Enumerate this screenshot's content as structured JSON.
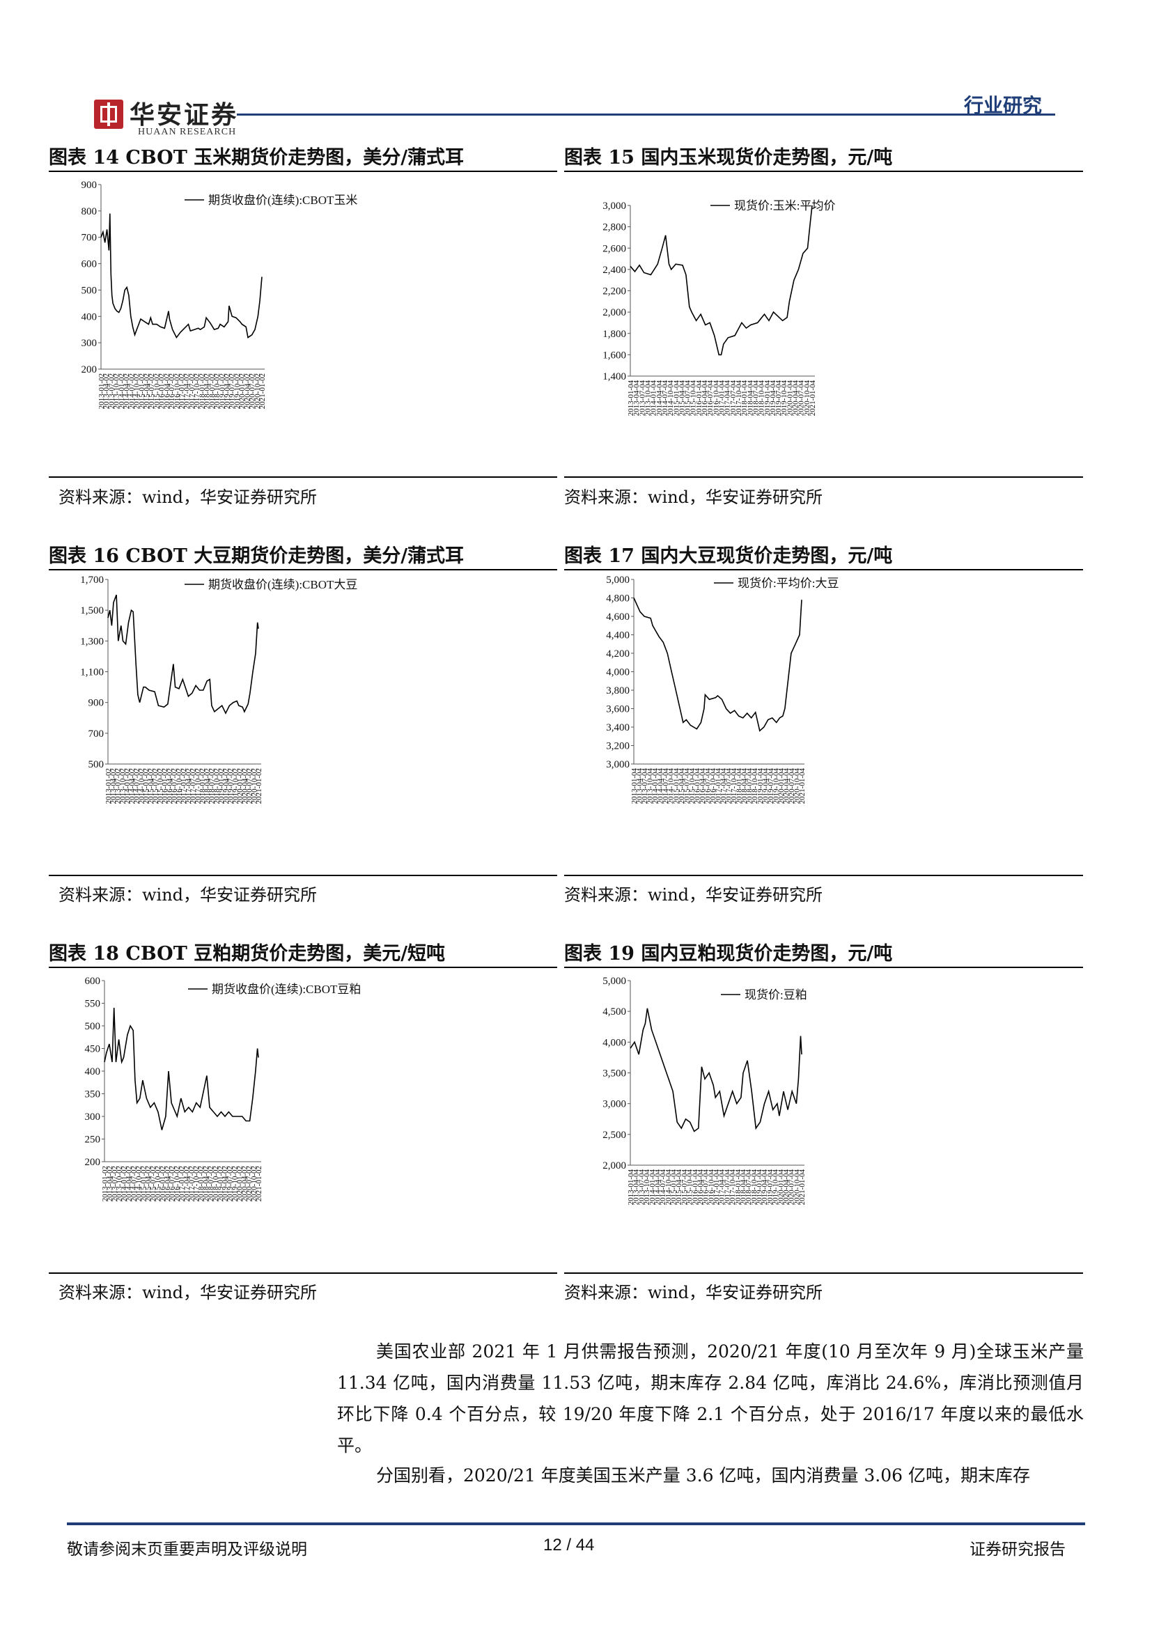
{
  "header": {
    "logo_cn": "华安证券",
    "logo_en": "HUAAN RESEARCH",
    "section_tag": "行业研究"
  },
  "figures": [
    {
      "caption": "图表 14 CBOT 玉米期货价走势图，美分/蒲式耳",
      "source": "资料来源：wind，华安证券研究所"
    },
    {
      "caption": "图表 15  国内玉米现货价走势图，元/吨",
      "source": "资料来源：wind，华安证券研究所"
    },
    {
      "caption": "图表 16 CBOT 大豆期货价走势图，美分/蒲式耳",
      "source": "资料来源：wind，华安证券研究所"
    },
    {
      "caption": "图表 17  国内大豆现货价走势图，元/吨",
      "source": "资料来源：wind，华安证券研究所"
    },
    {
      "caption": "图表 18 CBOT 豆粕期货价走势图，美元/短吨",
      "source": "资料来源：wind，华安证券研究所"
    },
    {
      "caption": "图表 19  国内豆粕现货价走势图，元/吨",
      "source": "资料来源：wind，华安证券研究所"
    }
  ],
  "chart_data": [
    {
      "type": "line",
      "legend": "期货收盘价(连续):CBOT玉米",
      "ylim": [
        200,
        900
      ],
      "yticks": [
        "200",
        "300",
        "400",
        "500",
        "600",
        "700",
        "800",
        "900"
      ],
      "xticks": [
        "2013-01-02",
        "2013-04-02",
        "2013-07-02",
        "2013-10-02",
        "2014-01-02",
        "2014-04-02",
        "2014-07-02",
        "2014-10-02",
        "2015-01-02",
        "2015-04-02",
        "2015-07-02",
        "2015-10-02",
        "2016-01-02",
        "2016-04-02",
        "2016-07-02",
        "2016-10-02",
        "2017-01-02",
        "2017-04-02",
        "2017-07-02",
        "2017-10-02",
        "2018-01-02",
        "2018-04-02",
        "2018-07-02",
        "2018-10-02",
        "2019-01-02",
        "2019-04-02",
        "2019-07-02",
        "2019-10-02",
        "2020-01-02",
        "2020-04-02",
        "2020-07-02",
        "2020-10-02",
        "2021-01-02"
      ],
      "x": [
        2013.0,
        2013.1,
        2013.2,
        2013.3,
        2013.4,
        2013.45,
        2013.5,
        2013.55,
        2013.6,
        2013.7,
        2013.8,
        2013.9,
        2014.0,
        2014.1,
        2014.2,
        2014.3,
        2014.4,
        2014.5,
        2014.6,
        2014.7,
        2014.8,
        2014.9,
        2015.0,
        2015.2,
        2015.4,
        2015.5,
        2015.6,
        2015.8,
        2016.0,
        2016.2,
        2016.4,
        2016.45,
        2016.6,
        2016.8,
        2017.0,
        2017.2,
        2017.4,
        2017.5,
        2017.7,
        2017.9,
        2018.0,
        2018.2,
        2018.3,
        2018.5,
        2018.7,
        2018.9,
        2019.0,
        2019.2,
        2019.4,
        2019.45,
        2019.6,
        2019.8,
        2020.0,
        2020.1,
        2020.3,
        2020.4,
        2020.6,
        2020.75,
        2020.9,
        2021.0,
        2021.1
      ],
      "y": [
        700,
        720,
        680,
        730,
        650,
        790,
        560,
        480,
        450,
        430,
        420,
        415,
        430,
        460,
        500,
        510,
        480,
        400,
        360,
        330,
        350,
        370,
        390,
        380,
        370,
        395,
        370,
        370,
        360,
        355,
        420,
        390,
        350,
        320,
        340,
        355,
        370,
        345,
        350,
        355,
        350,
        360,
        395,
        375,
        350,
        355,
        370,
        360,
        380,
        440,
        400,
        395,
        380,
        370,
        360,
        320,
        330,
        350,
        400,
        460,
        550
      ]
    },
    {
      "type": "line",
      "legend": "现货价:玉米:平均价",
      "ylim": [
        1400,
        3000
      ],
      "yticks": [
        "1,400",
        "1,600",
        "1,800",
        "2,000",
        "2,200",
        "2,400",
        "2,600",
        "2,800",
        "3,000"
      ],
      "xticks": [
        "2013-01-04",
        "2013-04-04",
        "2013-07-04",
        "2013-10-04",
        "2014-01-04",
        "2014-04-04",
        "2014-07-04",
        "2014-10-04",
        "2015-01-04",
        "2015-04-04",
        "2015-07-04",
        "2015-10-04",
        "2016-01-04",
        "2016-04-04",
        "2016-07-04",
        "2016-10-04",
        "2017-01-04",
        "2017-04-04",
        "2017-07-04",
        "2017-10-04",
        "2018-01-04",
        "2018-04-04",
        "2018-07-04",
        "2018-10-04",
        "2019-01-04",
        "2019-04-04",
        "2019-07-04",
        "2019-10-04",
        "2020-01-04",
        "2020-04-04",
        "2020-07-04",
        "2020-10-04",
        "2021-01-04"
      ],
      "x": [
        2013.0,
        2013.2,
        2013.4,
        2013.6,
        2013.9,
        2014.2,
        2014.4,
        2014.55,
        2014.7,
        2014.8,
        2015.0,
        2015.3,
        2015.45,
        2015.6,
        2015.7,
        2015.9,
        2016.1,
        2016.3,
        2016.5,
        2016.7,
        2016.9,
        2017.0,
        2017.1,
        2017.3,
        2017.6,
        2017.9,
        2018.1,
        2018.3,
        2018.6,
        2018.9,
        2019.1,
        2019.3,
        2019.5,
        2019.7,
        2019.9,
        2020.0,
        2020.2,
        2020.4,
        2020.6,
        2020.8,
        2020.9,
        2021.0
      ],
      "y": [
        2430,
        2380,
        2440,
        2370,
        2350,
        2450,
        2600,
        2720,
        2450,
        2400,
        2450,
        2440,
        2350,
        2050,
        2000,
        1920,
        1980,
        1880,
        1900,
        1780,
        1600,
        1600,
        1700,
        1760,
        1780,
        1900,
        1850,
        1880,
        1900,
        1980,
        1920,
        2000,
        1960,
        1920,
        1950,
        2100,
        2300,
        2400,
        2550,
        2600,
        2800,
        3000
      ]
    },
    {
      "type": "line",
      "legend": "期货收盘价(连续):CBOT大豆",
      "ylim": [
        500,
        1700
      ],
      "yticks": [
        "500",
        "700",
        "900",
        "1,100",
        "1,300",
        "1,500",
        "1,700"
      ],
      "xticks": [
        "2013-01-02",
        "2013-04-02",
        "2013-07-02",
        "2013-10-02",
        "2014-01-02",
        "2014-04-02",
        "2014-07-02",
        "2014-10-02",
        "2015-01-02",
        "2015-04-02",
        "2015-07-02",
        "2015-10-02",
        "2016-01-02",
        "2016-04-02",
        "2016-07-02",
        "2016-10-02",
        "2017-01-02",
        "2017-04-02",
        "2017-07-02",
        "2017-10-02",
        "2018-01-02",
        "2018-04-02",
        "2018-07-02",
        "2018-10-02",
        "2019-01-02",
        "2019-04-02",
        "2019-07-02",
        "2019-10-02",
        "2020-01-02",
        "2020-04-02",
        "2020-07-02",
        "2020-10-02",
        "2021-01-02"
      ],
      "x": [
        2013.0,
        2013.1,
        2013.2,
        2013.3,
        2013.45,
        2013.55,
        2013.7,
        2013.8,
        2013.95,
        2014.1,
        2014.25,
        2014.35,
        2014.5,
        2014.6,
        2014.7,
        2014.9,
        2015.0,
        2015.2,
        2015.5,
        2015.7,
        2016.0,
        2016.2,
        2016.5,
        2016.6,
        2016.8,
        2017.0,
        2017.3,
        2017.5,
        2017.7,
        2017.9,
        2018.1,
        2018.3,
        2018.45,
        2018.55,
        2018.7,
        2018.9,
        2019.1,
        2019.3,
        2019.5,
        2019.7,
        2019.9,
        2020.0,
        2020.2,
        2020.3,
        2020.5,
        2020.6,
        2020.75,
        2020.9,
        2021.0,
        2021.05
      ],
      "y": [
        1450,
        1500,
        1400,
        1550,
        1600,
        1300,
        1400,
        1300,
        1280,
        1420,
        1500,
        1490,
        1150,
        950,
        900,
        1000,
        1000,
        980,
        970,
        880,
        870,
        890,
        1150,
        1000,
        990,
        1050,
        940,
        960,
        1010,
        980,
        980,
        1040,
        1050,
        880,
        840,
        860,
        880,
        830,
        880,
        900,
        910,
        880,
        870,
        840,
        890,
        960,
        1100,
        1220,
        1420,
        1380
      ]
    },
    {
      "type": "line",
      "legend": "现货价:平均价:大豆",
      "ylim": [
        3000,
        5000
      ],
      "yticks": [
        "3,000",
        "3,200",
        "3,400",
        "3,600",
        "3,800",
        "4,000",
        "4,200",
        "4,400",
        "4,600",
        "4,800",
        "5,000"
      ],
      "xticks": [
        "2013-01-04",
        "2013-04-04",
        "2013-07-04",
        "2013-10-04",
        "2014-01-04",
        "2014-04-04",
        "2014-07-04",
        "2014-10-04",
        "2015-01-04",
        "2015-04-04",
        "2015-07-04",
        "2015-10-04",
        "2016-01-04",
        "2016-04-04",
        "2016-07-04",
        "2016-10-04",
        "2017-01-04",
        "2017-04-04",
        "2017-07-04",
        "2017-10-04",
        "2018-01-04",
        "2018-04-04",
        "2018-07-04",
        "2018-10-04",
        "2019-01-04",
        "2019-04-04",
        "2019-07-04",
        "2019-10-04",
        "2020-01-04",
        "2020-04-04",
        "2020-07-04",
        "2020-10-04",
        "2021-01-04"
      ],
      "x": [
        2013.0,
        2013.2,
        2013.3,
        2013.5,
        2013.8,
        2013.9,
        2014.2,
        2014.4,
        2014.6,
        2014.8,
        2015.0,
        2015.2,
        2015.35,
        2015.5,
        2015.7,
        2016.0,
        2016.2,
        2016.35,
        2016.4,
        2016.6,
        2016.9,
        2017.0,
        2017.2,
        2017.4,
        2017.6,
        2017.8,
        2018.0,
        2018.2,
        2018.4,
        2018.6,
        2018.8,
        2019.0,
        2019.2,
        2019.4,
        2019.6,
        2019.8,
        2019.95,
        2020.1,
        2020.2,
        2020.4,
        2020.5,
        2020.7,
        2020.9,
        2021.0
      ],
      "y": [
        4800,
        4700,
        4650,
        4600,
        4580,
        4500,
        4380,
        4320,
        4200,
        4000,
        3800,
        3600,
        3450,
        3480,
        3420,
        3380,
        3450,
        3600,
        3750,
        3700,
        3720,
        3740,
        3700,
        3600,
        3550,
        3580,
        3520,
        3500,
        3550,
        3500,
        3560,
        3360,
        3400,
        3480,
        3500,
        3450,
        3500,
        3520,
        3600,
        4000,
        4200,
        4300,
        4400,
        4780
      ]
    },
    {
      "type": "line",
      "legend": "期货收盘价(连续):CBOT豆粕",
      "ylim": [
        200,
        600
      ],
      "yticks": [
        "200",
        "250",
        "300",
        "350",
        "400",
        "450",
        "500",
        "550",
        "600"
      ],
      "xticks": [
        "2013-01-02",
        "2013-04-02",
        "2013-07-02",
        "2013-10-02",
        "2014-01-02",
        "2014-04-02",
        "2014-07-02",
        "2014-10-02",
        "2015-01-02",
        "2015-04-02",
        "2015-07-02",
        "2015-10-02",
        "2016-01-02",
        "2016-04-02",
        "2016-07-02",
        "2016-10-02",
        "2017-01-02",
        "2017-04-02",
        "2017-07-02",
        "2017-10-02",
        "2018-01-02",
        "2018-04-02",
        "2018-07-02",
        "2018-10-02",
        "2019-01-02",
        "2019-04-02",
        "2019-07-02",
        "2019-10-02",
        "2020-01-02",
        "2020-04-02",
        "2020-07-02",
        "2020-10-02",
        "2021-01-02"
      ],
      "x": [
        2013.0,
        2013.1,
        2013.25,
        2013.4,
        2013.5,
        2013.6,
        2013.75,
        2013.9,
        2014.0,
        2014.2,
        2014.35,
        2014.5,
        2014.6,
        2014.7,
        2014.85,
        2015.0,
        2015.2,
        2015.4,
        2015.6,
        2015.8,
        2016.0,
        2016.2,
        2016.35,
        2016.5,
        2016.6,
        2016.8,
        2017.0,
        2017.2,
        2017.4,
        2017.6,
        2017.8,
        2018.0,
        2018.2,
        2018.35,
        2018.5,
        2018.7,
        2018.9,
        2019.1,
        2019.3,
        2019.5,
        2019.7,
        2019.9,
        2020.0,
        2020.2,
        2020.4,
        2020.6,
        2020.75,
        2020.9,
        2021.0,
        2021.05
      ],
      "y": [
        420,
        440,
        460,
        420,
        540,
        420,
        470,
        420,
        430,
        480,
        500,
        490,
        380,
        330,
        340,
        380,
        340,
        320,
        330,
        310,
        270,
        300,
        400,
        330,
        320,
        300,
        340,
        310,
        320,
        310,
        330,
        320,
        360,
        390,
        320,
        310,
        300,
        310,
        300,
        310,
        300,
        300,
        300,
        300,
        290,
        290,
        340,
        400,
        450,
        430
      ]
    },
    {
      "type": "line",
      "legend": "现货价:豆粕",
      "ylim": [
        2000,
        5000
      ],
      "yticks": [
        "2,000",
        "2,500",
        "3,000",
        "3,500",
        "4,000",
        "4,500",
        "5,000"
      ],
      "xticks": [
        "2013-01-04",
        "2013-04-04",
        "2013-07-04",
        "2013-10-04",
        "2014-01-04",
        "2014-04-04",
        "2014-07-04",
        "2014-10-04",
        "2015-01-04",
        "2015-04-04",
        "2015-07-04",
        "2015-10-04",
        "2016-01-04",
        "2016-04-04",
        "2016-07-04",
        "2016-10-04",
        "2017-01-04",
        "2017-04-04",
        "2017-07-04",
        "2017-10-04",
        "2018-01-04",
        "2018-04-04",
        "2018-07-04",
        "2018-10-04",
        "2019-01-04",
        "2019-04-04",
        "2019-07-04",
        "2019-10-04",
        "2020-01-04",
        "2020-04-04",
        "2020-07-04",
        "2020-10-04",
        "2021-01-04"
      ],
      "x": [
        2013.0,
        2013.2,
        2013.4,
        2013.6,
        2013.7,
        2013.8,
        2014.0,
        2014.2,
        2014.4,
        2014.6,
        2014.8,
        2015.0,
        2015.2,
        2015.4,
        2015.6,
        2015.8,
        2016.0,
        2016.2,
        2016.35,
        2016.5,
        2016.7,
        2016.9,
        2017.0,
        2017.2,
        2017.4,
        2017.6,
        2017.8,
        2018.0,
        2018.2,
        2018.3,
        2018.5,
        2018.7,
        2018.9,
        2019.1,
        2019.3,
        2019.5,
        2019.7,
        2019.9,
        2020.0,
        2020.2,
        2020.4,
        2020.6,
        2020.8,
        2020.9,
        2021.0,
        2021.05
      ],
      "y": [
        3900,
        4000,
        3800,
        4200,
        4300,
        4550,
        4200,
        4000,
        3800,
        3600,
        3400,
        3200,
        2700,
        2600,
        2750,
        2700,
        2550,
        2600,
        3600,
        3400,
        3500,
        3300,
        3100,
        3200,
        2800,
        3000,
        3200,
        3000,
        3100,
        3500,
        3700,
        3200,
        2600,
        2700,
        3000,
        3200,
        2900,
        3000,
        2800,
        3200,
        2900,
        3200,
        3000,
        3400,
        4100,
        3800
      ]
    }
  ],
  "body": {
    "paragraphs": [
      "美国农业部 2021 年 1 月供需报告预测，2020/21 年度(10 月至次年 9 月)全球玉米产量 11.34 亿吨，国内消费量 11.53 亿吨，期末库存 2.84 亿吨，库消比 24.6%，库消比预测值月环比下降 0.4 个百分点，较 19/20 年度下降 2.1 个百分点，处于 2016/17 年度以来的最低水平。",
      "分国别看，2020/21 年度美国玉米产量 3.6 亿吨，国内消费量 3.06 亿吨，期末库存"
    ]
  },
  "footer": {
    "disclaimer": "敬请参阅末页重要声明及评级说明",
    "page": "12 / 44",
    "report_type": "证券研究报告"
  }
}
